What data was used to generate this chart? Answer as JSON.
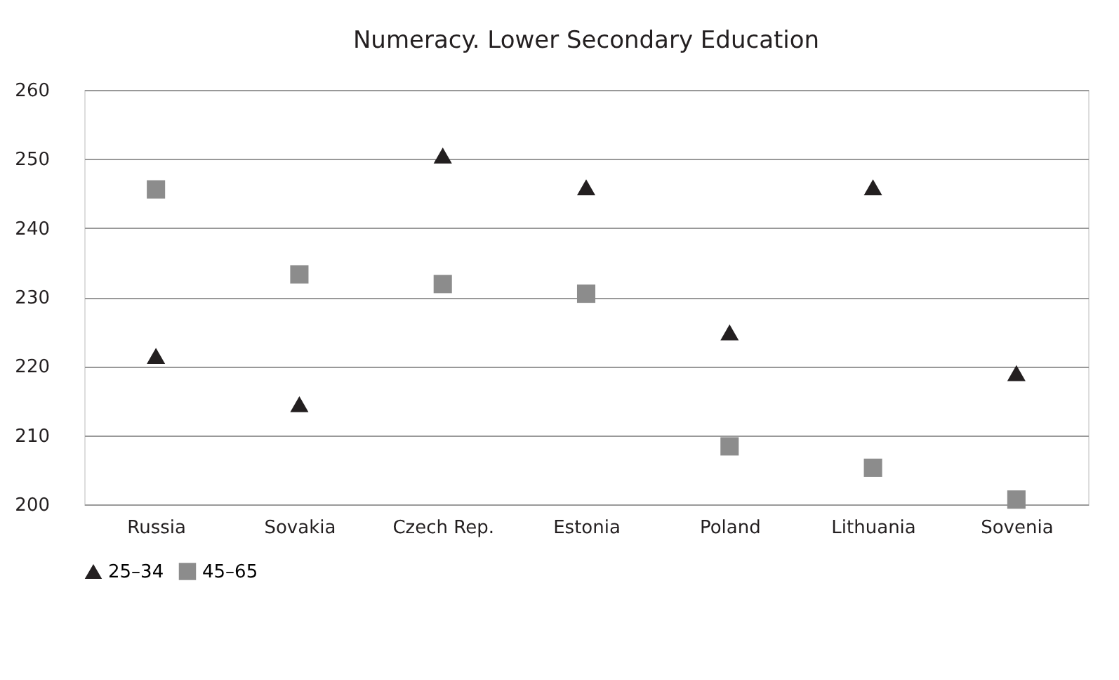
{
  "chart_data": {
    "type": "scatter",
    "title": "Numeracy. Lower Secondary Education",
    "categories": [
      "Russia",
      "Sovakia",
      "Czech Rep.",
      "Estonia",
      "Poland",
      "Lithuania",
      "Sovenia"
    ],
    "series": [
      {
        "name": "25–34",
        "color": "#231f20",
        "marker": "triangle",
        "values": [
          221.5,
          214.5,
          250.5,
          245.9,
          224.9,
          245.9,
          219.0
        ]
      },
      {
        "name": "45–65",
        "color": "#8c8c8c",
        "marker": "square",
        "values": [
          245.6,
          233.3,
          231.9,
          230.5,
          208.4,
          205.3,
          200.7
        ]
      }
    ],
    "ylim": [
      200,
      260
    ],
    "yticks": [
      200,
      210,
      220,
      230,
      240,
      250,
      260
    ],
    "grid": "y",
    "legend": "bottom"
  }
}
